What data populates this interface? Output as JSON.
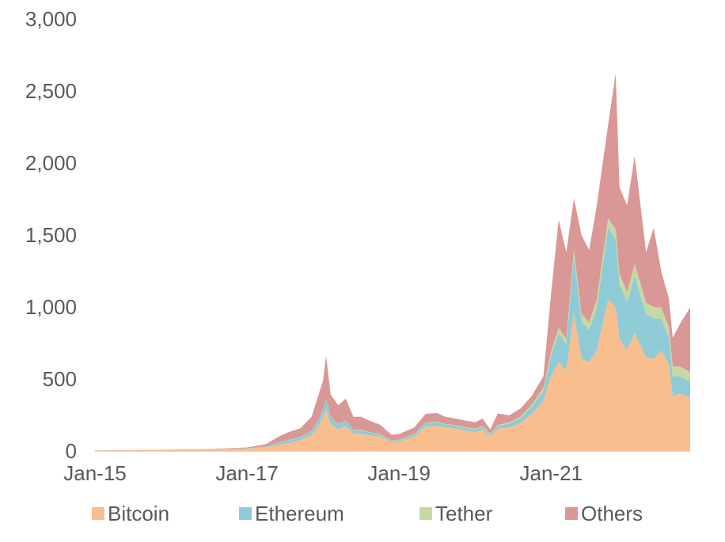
{
  "chart_data": {
    "type": "area",
    "stacked": true,
    "title": "",
    "xlabel": "",
    "ylabel": "",
    "ylim": [
      0,
      3000
    ],
    "yticks": [
      0,
      500,
      1000,
      1500,
      2000,
      2500,
      3000
    ],
    "ytick_labels": [
      "0",
      "500",
      "1,000",
      "1,500",
      "2,000",
      "2,500",
      "3,000"
    ],
    "xlim": [
      2015.0,
      2022.83
    ],
    "xticks": [
      2015,
      2017,
      2019,
      2021
    ],
    "xtick_labels": [
      "Jan-15",
      "Jan-17",
      "Jan-19",
      "Jan-21"
    ],
    "legend_position": "bottom",
    "x": [
      2015.0,
      2015.5,
      2016.0,
      2016.5,
      2017.0,
      2017.25,
      2017.4,
      2017.55,
      2017.7,
      2017.85,
      2017.96,
      2018.0,
      2018.04,
      2018.1,
      2018.2,
      2018.3,
      2018.4,
      2018.5,
      2018.6,
      2018.75,
      2018.9,
      2019.0,
      2019.2,
      2019.35,
      2019.5,
      2019.6,
      2019.75,
      2019.9,
      2020.0,
      2020.1,
      2020.2,
      2020.3,
      2020.45,
      2020.6,
      2020.75,
      2020.9,
      2021.0,
      2021.1,
      2021.2,
      2021.3,
      2021.4,
      2021.5,
      2021.6,
      2021.75,
      2021.85,
      2021.9,
      2022.0,
      2022.1,
      2022.25,
      2022.35,
      2022.45,
      2022.55,
      2022.6,
      2022.7,
      2022.83
    ],
    "series": [
      {
        "name": "Bitcoin",
        "color": "#f9be8e",
        "values": [
          3,
          5,
          7,
          10,
          18,
          25,
          40,
          55,
          75,
          110,
          190,
          230,
          290,
          190,
          150,
          175,
          120,
          120,
          110,
          100,
          60,
          65,
          100,
          170,
          175,
          165,
          155,
          140,
          130,
          150,
          100,
          155,
          165,
          195,
          260,
          350,
          520,
          620,
          560,
          960,
          640,
          620,
          700,
          1050,
          1000,
          780,
          700,
          820,
          650,
          640,
          700,
          600,
          380,
          400,
          370
        ]
      },
      {
        "name": "Ethereum",
        "color": "#8fcbd6",
        "values": [
          0,
          0,
          0,
          1,
          2,
          6,
          15,
          20,
          20,
          25,
          40,
          55,
          70,
          50,
          35,
          35,
          25,
          25,
          20,
          15,
          10,
          10,
          15,
          25,
          25,
          20,
          20,
          20,
          20,
          20,
          15,
          20,
          25,
          35,
          50,
          70,
          140,
          200,
          180,
          400,
          260,
          220,
          290,
          500,
          470,
          380,
          330,
          400,
          300,
          280,
          220,
          190,
          140,
          120,
          110
        ]
      },
      {
        "name": "Tether",
        "color": "#c5d9a0",
        "values": [
          0,
          0,
          0,
          0,
          0,
          1,
          1,
          2,
          2,
          3,
          3,
          3,
          3,
          3,
          3,
          3,
          3,
          3,
          3,
          3,
          3,
          3,
          3,
          3,
          4,
          4,
          4,
          4,
          5,
          5,
          5,
          6,
          8,
          10,
          15,
          20,
          30,
          35,
          40,
          45,
          50,
          55,
          60,
          65,
          70,
          72,
          75,
          78,
          80,
          80,
          75,
          70,
          68,
          67,
          68
        ]
      },
      {
        "name": "Others",
        "color": "#d99795",
        "values": [
          1,
          1,
          2,
          3,
          5,
          15,
          40,
          55,
          60,
          100,
          190,
          200,
          300,
          150,
          130,
          150,
          90,
          90,
          80,
          65,
          40,
          40,
          45,
          60,
          60,
          50,
          45,
          45,
          45,
          50,
          30,
          80,
          50,
          55,
          60,
          80,
          400,
          750,
          600,
          350,
          550,
          500,
          650,
          650,
          1080,
          600,
          600,
          750,
          350,
          550,
          250,
          200,
          200,
          300,
          450
        ]
      }
    ]
  }
}
